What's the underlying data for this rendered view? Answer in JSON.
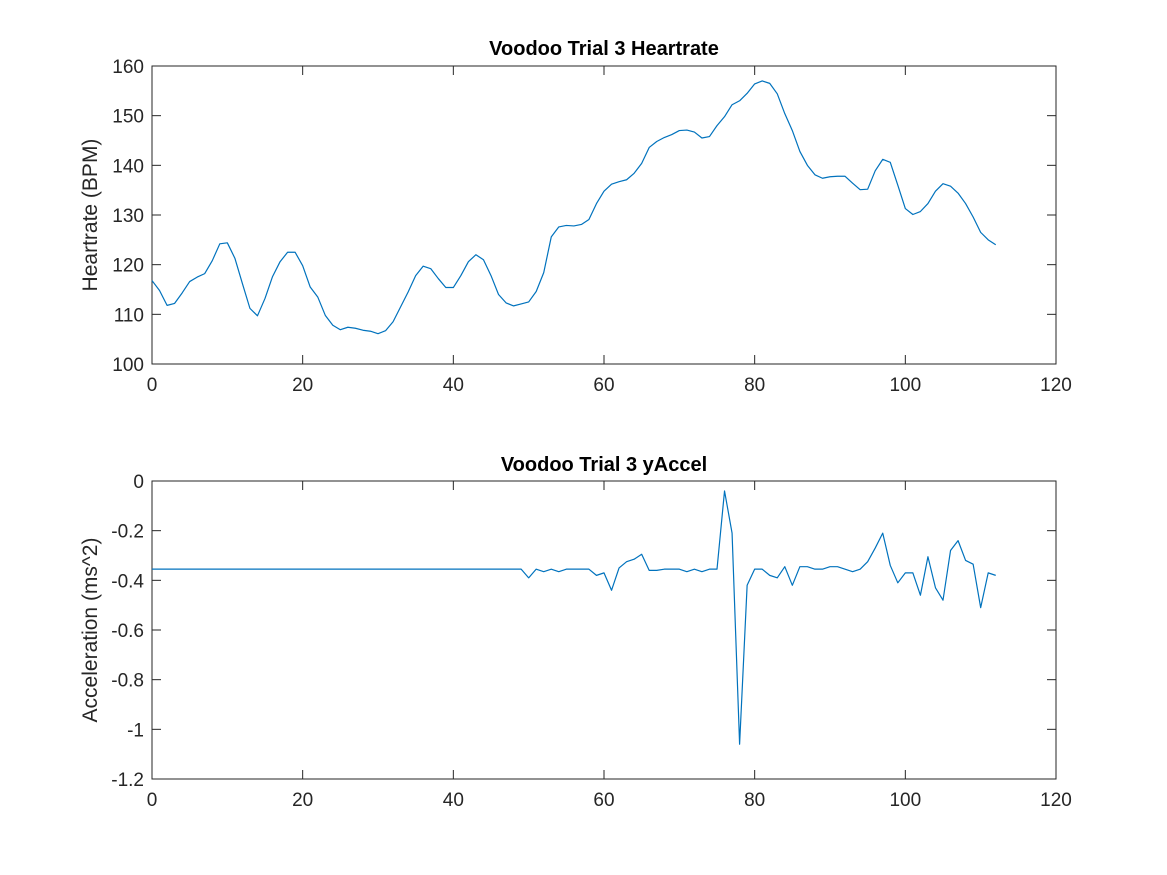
{
  "chart_data": [
    {
      "type": "line",
      "title": "Voodoo Trial 3 Heartrate",
      "xlabel": "",
      "ylabel": "Heartrate (BPM)",
      "xlim": [
        0,
        120
      ],
      "ylim": [
        100,
        160
      ],
      "xticks": [
        "0",
        "20",
        "40",
        "60",
        "80",
        "100",
        "120"
      ],
      "yticks": [
        "100",
        "110",
        "120",
        "130",
        "140",
        "150",
        "160"
      ],
      "grid": false,
      "color": "#0072BD",
      "x": [
        0,
        1,
        2,
        3,
        4,
        5,
        6,
        7,
        8,
        9,
        10,
        11,
        12,
        13,
        14,
        15,
        16,
        17,
        18,
        19,
        20,
        21,
        22,
        23,
        24,
        25,
        26,
        27,
        28,
        29,
        30,
        31,
        32,
        33,
        34,
        35,
        36,
        37,
        38,
        39,
        40,
        41,
        42,
        43,
        44,
        45,
        46,
        47,
        48,
        49,
        50,
        51,
        52,
        53,
        54,
        55,
        56,
        57,
        58,
        59,
        60,
        61,
        62,
        63,
        64,
        65,
        66,
        67,
        68,
        69,
        70,
        71,
        72,
        73,
        74,
        75,
        76,
        77,
        78,
        79,
        80,
        81,
        82,
        83,
        84,
        85,
        86,
        87,
        88,
        89,
        90,
        91,
        92,
        93,
        94,
        95,
        96,
        97,
        98,
        99,
        100,
        101,
        102,
        103,
        104,
        105,
        106,
        107,
        108,
        109,
        110,
        111,
        112
      ],
      "y": [
        116.8,
        114.8,
        111.8,
        112.2,
        114.3,
        116.6,
        117.5,
        118.2,
        120.8,
        124.2,
        124.4,
        121.3,
        116.2,
        111.2,
        109.7,
        113.2,
        117.6,
        120.6,
        122.5,
        122.5,
        119.8,
        115.5,
        113.5,
        109.8,
        107.8,
        106.9,
        107.4,
        107.2,
        106.8,
        106.6,
        106.1,
        106.7,
        108.5,
        111.5,
        114.5,
        117.8,
        119.7,
        119.2,
        117.2,
        115.4,
        115.4,
        117.8,
        120.6,
        122,
        121,
        117.8,
        114,
        112.3,
        111.7,
        112.1,
        112.5,
        114.6,
        118.4,
        125.6,
        127.6,
        127.9,
        127.8,
        128.1,
        129.1,
        132.3,
        134.8,
        136.2,
        136.7,
        137.1,
        138.4,
        140.4,
        143.6,
        144.8,
        145.6,
        146.2,
        147,
        147.1,
        146.7,
        145.5,
        145.8,
        148,
        149.8,
        152.2,
        153,
        154.5,
        156.4,
        157,
        156.5,
        154.4,
        150.4,
        147,
        142.8,
        140,
        138.1,
        137.4,
        137.7,
        137.8,
        137.8,
        136.4,
        135.1,
        135.2,
        138.9,
        141.2,
        140.6,
        136,
        131.3,
        130.1,
        130.7,
        132.3,
        134.8,
        136.3,
        135.8,
        134.4,
        132.3,
        129.6,
        126.5,
        125,
        124
      ]
    },
    {
      "type": "line",
      "title": "Voodoo Trial 3 yAccel",
      "xlabel": "",
      "ylabel": "Acceleration (ms^2)",
      "xlim": [
        0,
        120
      ],
      "ylim": [
        -1.2,
        0
      ],
      "xticks": [
        "0",
        "20",
        "40",
        "60",
        "80",
        "100",
        "120"
      ],
      "yticks": [
        "-1.2",
        "-1",
        "-0.8",
        "-0.6",
        "-0.4",
        "-0.2",
        "0"
      ],
      "grid": false,
      "color": "#0072BD",
      "x": [
        0,
        1,
        2,
        3,
        4,
        5,
        6,
        7,
        8,
        9,
        10,
        11,
        12,
        13,
        14,
        15,
        16,
        17,
        18,
        19,
        20,
        21,
        22,
        23,
        24,
        25,
        26,
        27,
        28,
        29,
        30,
        31,
        32,
        33,
        34,
        35,
        36,
        37,
        38,
        39,
        40,
        41,
        42,
        43,
        44,
        45,
        46,
        47,
        48,
        49,
        50,
        51,
        52,
        53,
        54,
        55,
        56,
        57,
        58,
        59,
        60,
        61,
        62,
        63,
        64,
        65,
        66,
        67,
        68,
        69,
        70,
        71,
        72,
        73,
        74,
        75,
        76,
        77,
        78,
        79,
        80,
        81,
        82,
        83,
        84,
        85,
        86,
        87,
        88,
        89,
        90,
        91,
        92,
        93,
        94,
        95,
        96,
        97,
        98,
        99,
        100,
        101,
        102,
        103,
        104,
        105,
        106,
        107,
        108,
        109,
        110,
        111,
        112
      ],
      "y": [
        -0.355,
        -0.355,
        -0.355,
        -0.355,
        -0.355,
        -0.355,
        -0.355,
        -0.355,
        -0.355,
        -0.355,
        -0.355,
        -0.355,
        -0.355,
        -0.355,
        -0.355,
        -0.355,
        -0.355,
        -0.355,
        -0.355,
        -0.355,
        -0.355,
        -0.355,
        -0.355,
        -0.355,
        -0.355,
        -0.355,
        -0.355,
        -0.355,
        -0.355,
        -0.355,
        -0.355,
        -0.355,
        -0.355,
        -0.355,
        -0.355,
        -0.355,
        -0.355,
        -0.355,
        -0.355,
        -0.355,
        -0.355,
        -0.355,
        -0.355,
        -0.355,
        -0.355,
        -0.355,
        -0.355,
        -0.355,
        -0.355,
        -0.355,
        -0.39,
        -0.355,
        -0.365,
        -0.355,
        -0.365,
        -0.355,
        -0.355,
        -0.355,
        -0.355,
        -0.38,
        -0.37,
        -0.44,
        -0.35,
        -0.325,
        -0.315,
        -0.295,
        -0.36,
        -0.36,
        -0.355,
        -0.355,
        -0.355,
        -0.365,
        -0.355,
        -0.365,
        -0.355,
        -0.355,
        -0.04,
        -0.21,
        -1.06,
        -0.42,
        -0.355,
        -0.355,
        -0.38,
        -0.39,
        -0.345,
        -0.42,
        -0.345,
        -0.345,
        -0.355,
        -0.355,
        -0.345,
        -0.345,
        -0.355,
        -0.365,
        -0.355,
        -0.325,
        -0.27,
        -0.21,
        -0.34,
        -0.41,
        -0.37,
        -0.37,
        -0.46,
        -0.305,
        -0.43,
        -0.48,
        -0.28,
        -0.24,
        -0.32,
        -0.335,
        -0.51,
        -0.37,
        -0.38
      ]
    }
  ]
}
